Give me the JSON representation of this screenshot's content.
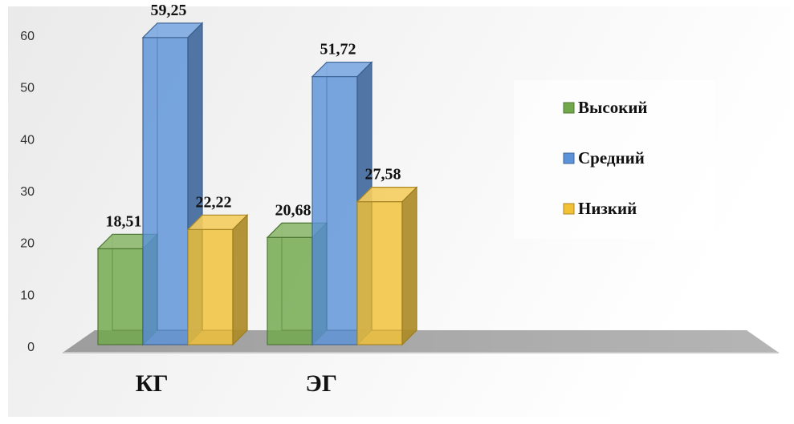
{
  "chart_data": {
    "type": "bar",
    "title": "",
    "xlabel": "",
    "ylabel": "",
    "categories": [
      "КГ",
      "ЭГ"
    ],
    "series": [
      {
        "name": "Высокий",
        "values": [
          18.51,
          20.68
        ],
        "labels": [
          "18,51",
          "20,68"
        ],
        "color": "#70a84a"
      },
      {
        "name": "Средний",
        "values": [
          59.25,
          51.72
        ],
        "labels": [
          "59,25",
          "51,72"
        ],
        "color": "#5b92d8"
      },
      {
        "name": "Низкий",
        "values": [
          22.22,
          27.58
        ],
        "labels": [
          "22,22",
          "27,58"
        ],
        "color": "#f2c136"
      }
    ],
    "ylim": [
      0,
      60
    ],
    "yticks": [
      "0",
      "10",
      "20",
      "30",
      "40",
      "50",
      "60"
    ],
    "grid": false,
    "style": "3d-clustered-column",
    "legend": {
      "position": "right",
      "items": [
        "Высокий",
        "Средний",
        "Низкий"
      ]
    }
  }
}
